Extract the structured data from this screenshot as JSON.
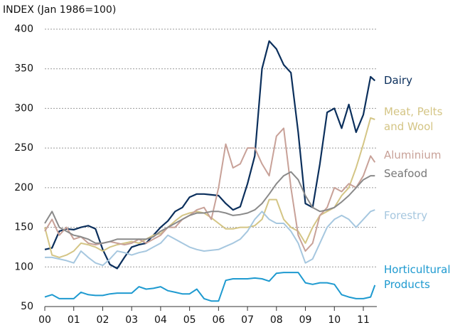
{
  "chart_data": {
    "type": "line",
    "y_label": "INDEX (Jan 1986=100)",
    "xlim": [
      0,
      11.4
    ],
    "xticks": [
      {
        "value": 0,
        "label": "00"
      },
      {
        "value": 1,
        "label": "01"
      },
      {
        "value": 2,
        "label": "02"
      },
      {
        "value": 3,
        "label": "03"
      },
      {
        "value": 4,
        "label": "04"
      },
      {
        "value": 5,
        "label": "05"
      },
      {
        "value": 6,
        "label": "06"
      },
      {
        "value": 7,
        "label": "07"
      },
      {
        "value": 8,
        "label": "08"
      },
      {
        "value": 9,
        "label": "09"
      },
      {
        "value": 10,
        "label": "10"
      },
      {
        "value": 11,
        "label": "11"
      }
    ],
    "ylim": [
      50,
      400
    ],
    "yticks": [
      50,
      100,
      150,
      200,
      250,
      300,
      350,
      400
    ],
    "grid": true,
    "x": [
      0,
      0.25,
      0.5,
      0.75,
      1,
      1.25,
      1.5,
      1.75,
      2,
      2.25,
      2.5,
      2.75,
      3,
      3.25,
      3.5,
      3.75,
      4,
      4.25,
      4.5,
      4.75,
      5,
      5.25,
      5.5,
      5.75,
      6,
      6.25,
      6.5,
      6.75,
      7,
      7.25,
      7.5,
      7.75,
      8,
      8.25,
      8.5,
      8.75,
      9,
      9.25,
      9.5,
      9.75,
      10,
      10.25,
      10.5,
      10.75,
      11,
      11.25,
      11.4
    ],
    "series": [
      {
        "name": "Dairy",
        "color": "#0b2f5c",
        "values": [
          122,
          124,
          145,
          148,
          147,
          150,
          152,
          148,
          122,
          103,
          98,
          112,
          125,
          128,
          130,
          140,
          150,
          158,
          170,
          175,
          188,
          192,
          192,
          191,
          190,
          180,
          172,
          176,
          205,
          240,
          350,
          385,
          375,
          355,
          345,
          270,
          180,
          175,
          230,
          295,
          300,
          275,
          305,
          270,
          292,
          340,
          335
        ]
      },
      {
        "name": "Meat, Pelts and Wool",
        "color": "#d4c585",
        "values": [
          150,
          115,
          112,
          115,
          120,
          130,
          128,
          125,
          120,
          125,
          128,
          130,
          132,
          130,
          135,
          140,
          142,
          150,
          158,
          165,
          168,
          170,
          168,
          162,
          155,
          148,
          148,
          150,
          150,
          152,
          160,
          185,
          185,
          160,
          150,
          145,
          130,
          150,
          165,
          170,
          175,
          190,
          200,
          225,
          255,
          288,
          286
        ]
      },
      {
        "name": "Aluminium",
        "color": "#c8a198",
        "values": [
          145,
          160,
          140,
          150,
          135,
          138,
          130,
          128,
          130,
          132,
          130,
          128,
          130,
          135,
          130,
          135,
          140,
          150,
          150,
          160,
          165,
          172,
          175,
          160,
          200,
          255,
          225,
          230,
          250,
          250,
          230,
          215,
          265,
          275,
          200,
          140,
          120,
          130,
          165,
          175,
          200,
          195,
          205,
          200,
          215,
          240,
          232
        ]
      },
      {
        "name": "Seafood",
        "color": "#8a8a8a",
        "values": [
          155,
          170,
          150,
          145,
          140,
          138,
          135,
          130,
          130,
          132,
          135,
          135,
          135,
          135,
          135,
          138,
          145,
          150,
          155,
          160,
          165,
          168,
          168,
          170,
          170,
          168,
          165,
          166,
          168,
          172,
          180,
          192,
          205,
          215,
          220,
          210,
          190,
          175,
          170,
          172,
          175,
          182,
          190,
          200,
          210,
          215,
          215
        ]
      },
      {
        "name": "Forestry",
        "color": "#a6c7df",
        "values": [
          112,
          112,
          110,
          108,
          105,
          120,
          112,
          105,
          102,
          110,
          120,
          118,
          115,
          118,
          120,
          125,
          130,
          140,
          135,
          130,
          125,
          122,
          120,
          121,
          122,
          126,
          130,
          135,
          145,
          160,
          170,
          160,
          155,
          155,
          145,
          130,
          105,
          110,
          130,
          150,
          160,
          165,
          160,
          150,
          160,
          170,
          172
        ]
      },
      {
        "name": "Horticultural Products",
        "color": "#1e9ad0",
        "values": [
          62,
          65,
          60,
          60,
          60,
          68,
          65,
          64,
          64,
          66,
          67,
          67,
          67,
          75,
          72,
          73,
          75,
          70,
          68,
          66,
          66,
          72,
          60,
          57,
          57,
          83,
          85,
          85,
          85,
          86,
          85,
          82,
          92,
          93,
          93,
          93,
          80,
          78,
          80,
          80,
          78,
          65,
          62,
          60,
          60,
          62,
          77
        ]
      }
    ]
  }
}
